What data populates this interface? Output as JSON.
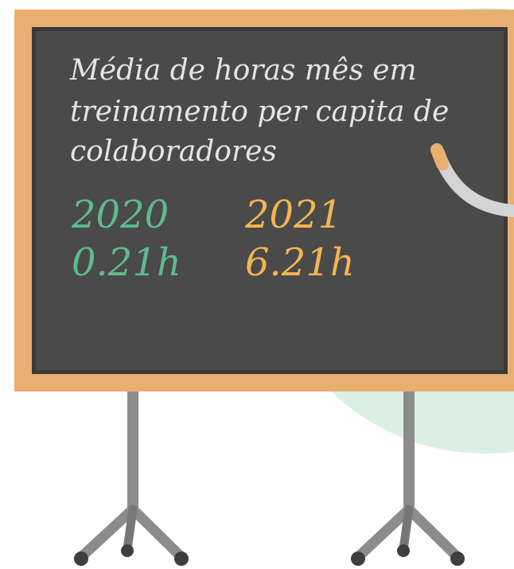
{
  "board": {
    "title_lines": [
      "Média de horas mês em",
      "treinamento per capita de",
      "colaboradores"
    ],
    "entries": [
      {
        "year": "2020",
        "value": "0.21h"
      },
      {
        "year": "2021",
        "value": "6.21h"
      }
    ]
  }
}
